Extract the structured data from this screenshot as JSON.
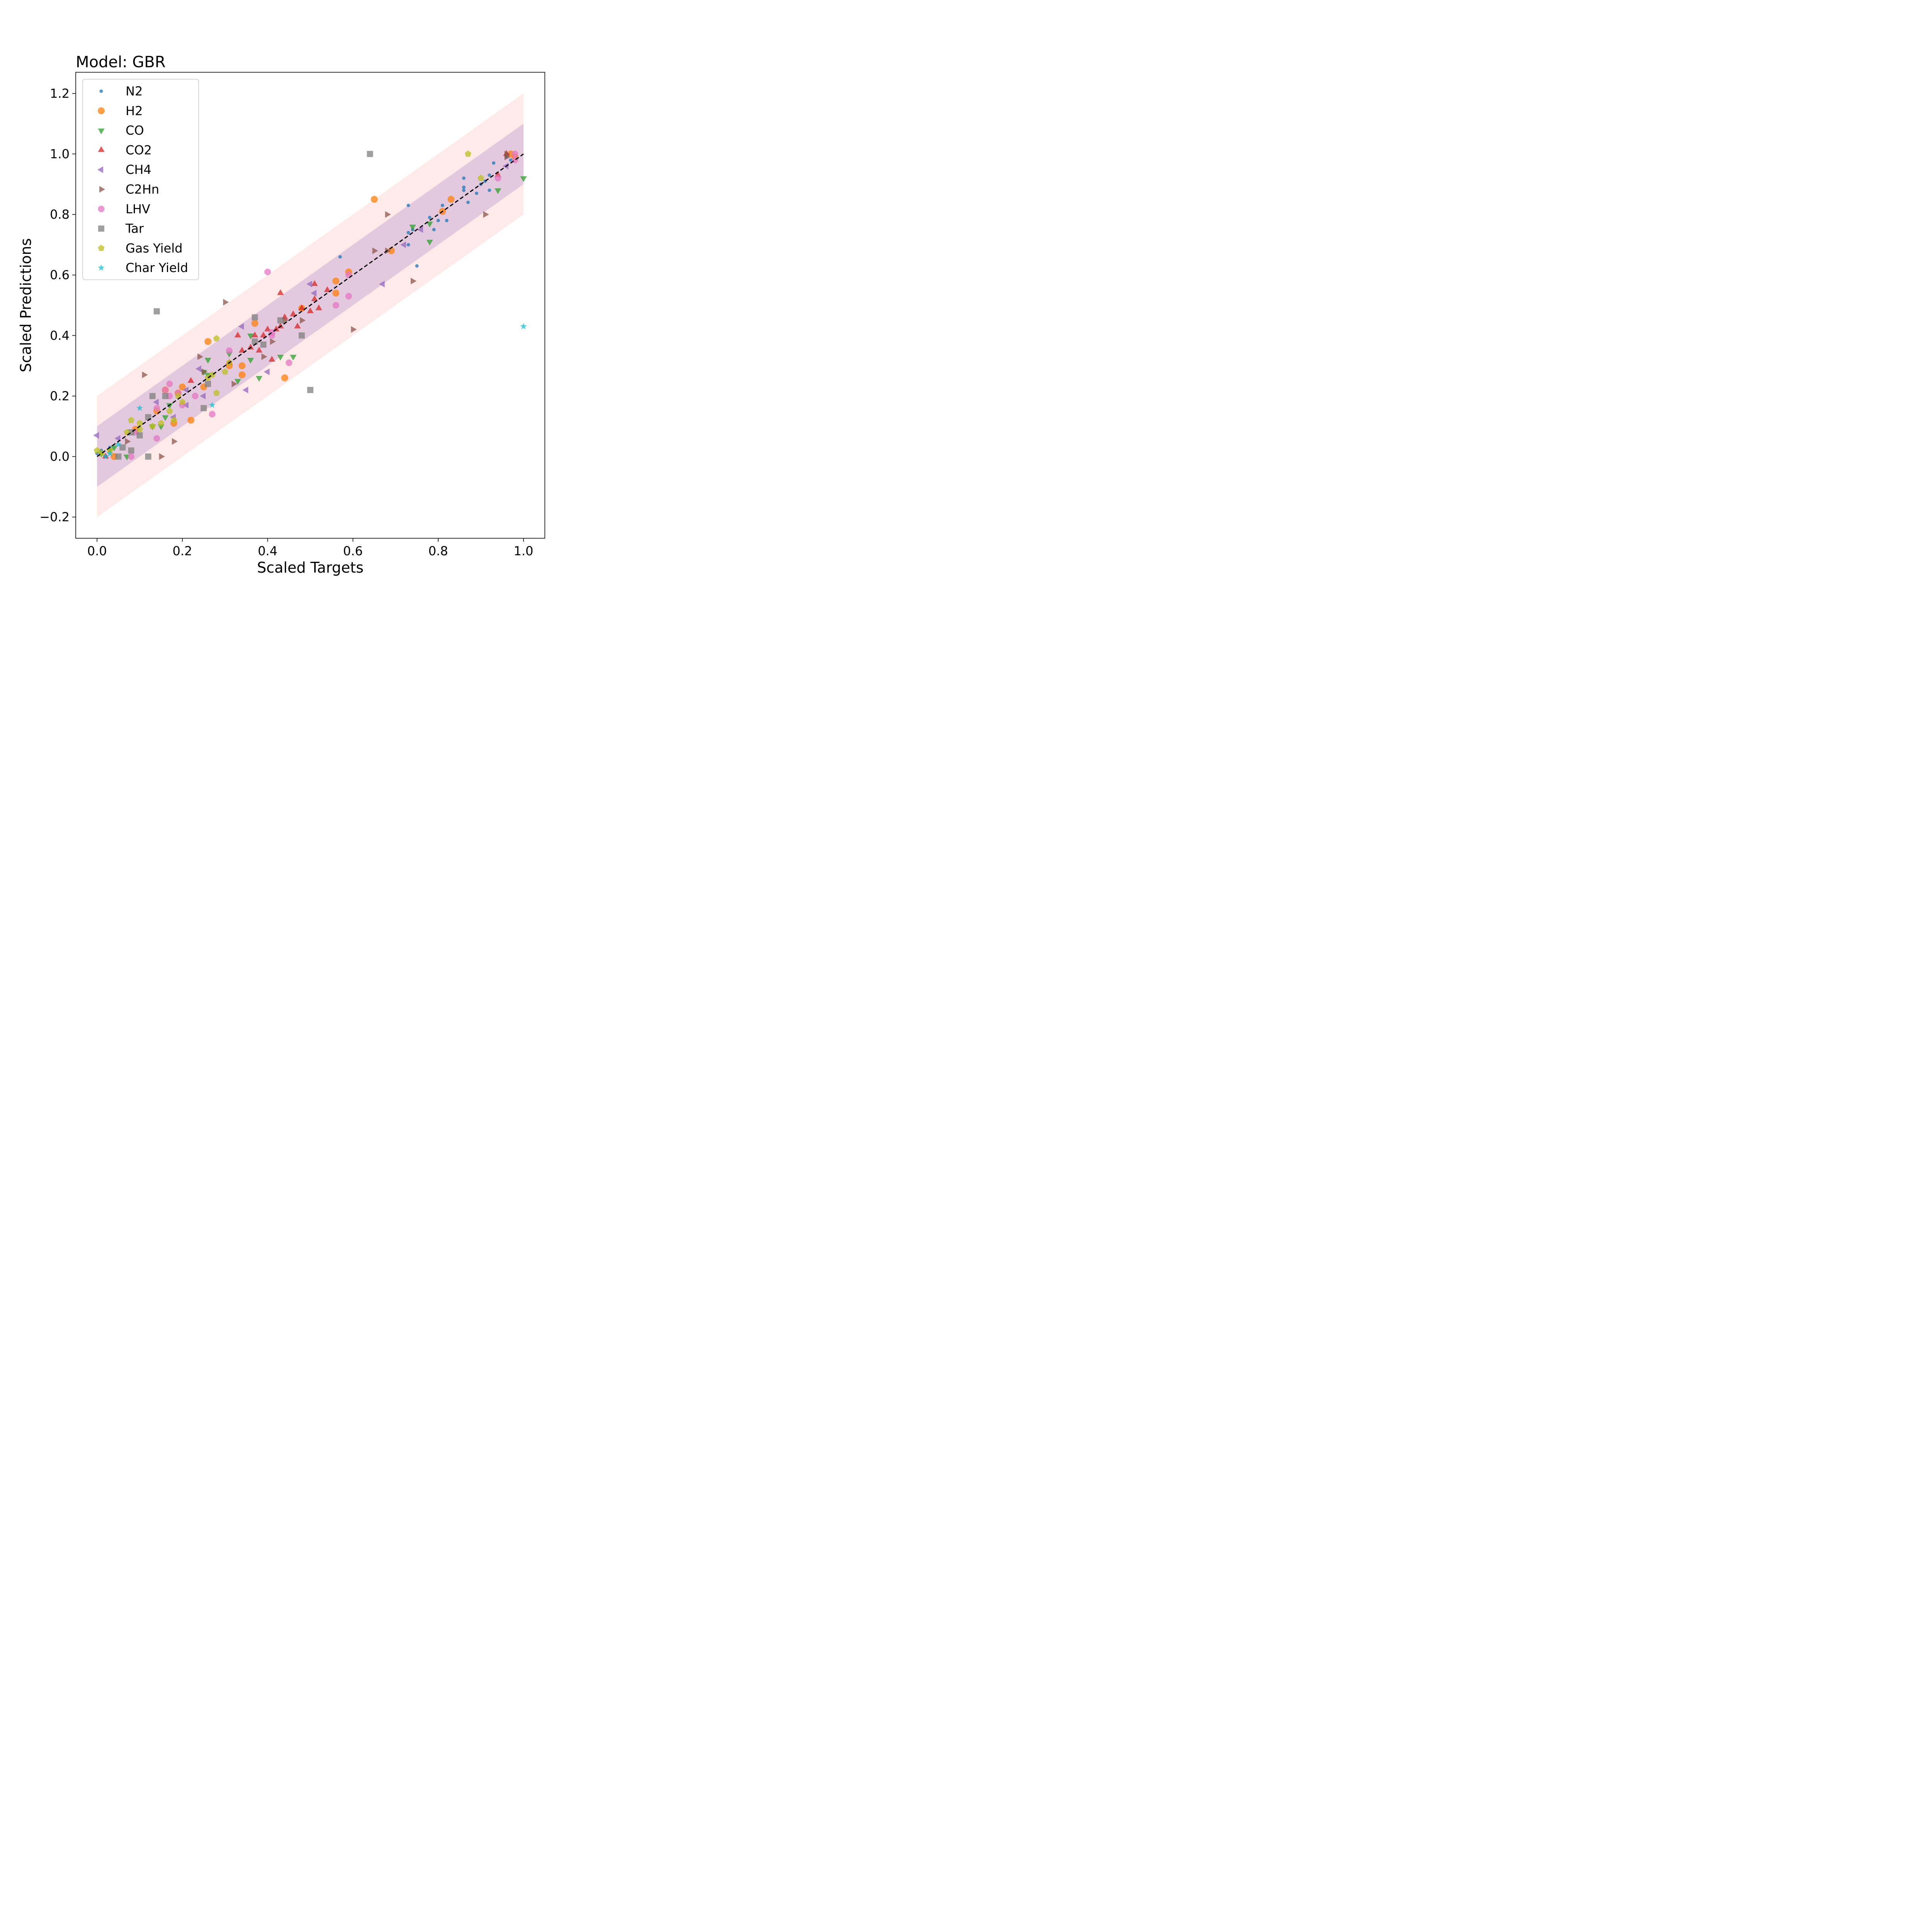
{
  "chart_data": {
    "type": "scatter",
    "title": "Model: GBR",
    "xlabel": "Scaled Targets",
    "ylabel": "Scaled Predictions",
    "xlim": [
      -0.05,
      1.05
    ],
    "ylim": [
      -0.27,
      1.27
    ],
    "xticks": [
      {
        "value": 0.0,
        "label": "0.0"
      },
      {
        "value": 0.2,
        "label": "0.2"
      },
      {
        "value": 0.4,
        "label": "0.4"
      },
      {
        "value": 0.6,
        "label": "0.6"
      },
      {
        "value": 0.8,
        "label": "0.8"
      },
      {
        "value": 1.0,
        "label": "1.0"
      }
    ],
    "yticks": [
      {
        "value": -0.2,
        "label": "−0.2"
      },
      {
        "value": 0.0,
        "label": "0.0"
      },
      {
        "value": 0.2,
        "label": "0.2"
      },
      {
        "value": 0.4,
        "label": "0.4"
      },
      {
        "value": 0.6,
        "label": "0.6"
      },
      {
        "value": 0.8,
        "label": "0.8"
      },
      {
        "value": 1.0,
        "label": "1.0"
      },
      {
        "value": 1.2,
        "label": "1.2"
      }
    ],
    "grid": false,
    "legend_position": "top-left",
    "reference_line": {
      "x": [
        0,
        1
      ],
      "y": [
        0,
        1
      ],
      "color": "#000000",
      "style": "dashed"
    },
    "bands": [
      {
        "half_width": 0.2,
        "color": "#ffb3b3",
        "opacity": 0.28
      },
      {
        "half_width": 0.1,
        "color": "#9467bd",
        "opacity": 0.25
      }
    ],
    "series": [
      {
        "name": "N2",
        "marker": "circle-small",
        "color": "#1f77b4",
        "points": [
          [
            0.0,
            0.01
          ],
          [
            0.01,
            0.02
          ],
          [
            0.02,
            0.0
          ],
          [
            0.03,
            0.03
          ],
          [
            0.57,
            0.66
          ],
          [
            0.73,
            0.83
          ],
          [
            0.73,
            0.74
          ],
          [
            0.73,
            0.7
          ],
          [
            0.74,
            0.75
          ],
          [
            0.75,
            0.63
          ],
          [
            0.78,
            0.79
          ],
          [
            0.79,
            0.75
          ],
          [
            0.8,
            0.78
          ],
          [
            0.81,
            0.83
          ],
          [
            0.82,
            0.78
          ],
          [
            0.86,
            0.88
          ],
          [
            0.86,
            0.89
          ],
          [
            0.86,
            0.92
          ],
          [
            0.87,
            0.84
          ],
          [
            0.89,
            0.87
          ],
          [
            0.9,
            0.9
          ],
          [
            0.91,
            0.91
          ],
          [
            0.92,
            0.93
          ],
          [
            0.92,
            0.88
          ],
          [
            0.93,
            0.97
          ],
          [
            0.96,
            0.99
          ],
          [
            0.97,
            0.98
          ]
        ]
      },
      {
        "name": "H2",
        "marker": "circle",
        "color": "#ff7f0e",
        "points": [
          [
            0.04,
            0.0
          ],
          [
            0.09,
            0.09
          ],
          [
            0.14,
            0.15
          ],
          [
            0.16,
            0.22
          ],
          [
            0.18,
            0.11
          ],
          [
            0.19,
            0.21
          ],
          [
            0.2,
            0.23
          ],
          [
            0.22,
            0.12
          ],
          [
            0.25,
            0.23
          ],
          [
            0.26,
            0.38
          ],
          [
            0.31,
            0.3
          ],
          [
            0.34,
            0.3
          ],
          [
            0.34,
            0.27
          ],
          [
            0.37,
            0.44
          ],
          [
            0.44,
            0.26
          ],
          [
            0.48,
            0.49
          ],
          [
            0.56,
            0.58
          ],
          [
            0.56,
            0.54
          ],
          [
            0.59,
            0.61
          ],
          [
            0.65,
            0.85
          ],
          [
            0.69,
            0.68
          ],
          [
            0.81,
            0.81
          ],
          [
            0.83,
            0.85
          ],
          [
            0.97,
            1.0
          ],
          [
            0.98,
            0.99
          ]
        ]
      },
      {
        "name": "CO",
        "marker": "triangle-down",
        "color": "#2ca02c",
        "points": [
          [
            0.01,
            0.01
          ],
          [
            0.03,
            0.02
          ],
          [
            0.04,
            0.03
          ],
          [
            0.07,
            0.0
          ],
          [
            0.13,
            0.1
          ],
          [
            0.15,
            0.1
          ],
          [
            0.16,
            0.13
          ],
          [
            0.17,
            0.17
          ],
          [
            0.25,
            0.28
          ],
          [
            0.26,
            0.32
          ],
          [
            0.26,
            0.27
          ],
          [
            0.31,
            0.34
          ],
          [
            0.33,
            0.25
          ],
          [
            0.36,
            0.4
          ],
          [
            0.36,
            0.32
          ],
          [
            0.38,
            0.26
          ],
          [
            0.43,
            0.33
          ],
          [
            0.46,
            0.33
          ],
          [
            0.74,
            0.76
          ],
          [
            0.78,
            0.71
          ],
          [
            0.78,
            0.77
          ],
          [
            0.94,
            0.88
          ],
          [
            1.0,
            0.92
          ]
        ]
      },
      {
        "name": "CO2",
        "marker": "triangle-up",
        "color": "#d62728",
        "points": [
          [
            0.02,
            0.0
          ],
          [
            0.22,
            0.25
          ],
          [
            0.31,
            0.31
          ],
          [
            0.33,
            0.4
          ],
          [
            0.34,
            0.35
          ],
          [
            0.36,
            0.36
          ],
          [
            0.37,
            0.4
          ],
          [
            0.38,
            0.35
          ],
          [
            0.39,
            0.4
          ],
          [
            0.4,
            0.42
          ],
          [
            0.41,
            0.32
          ],
          [
            0.42,
            0.42
          ],
          [
            0.43,
            0.54
          ],
          [
            0.43,
            0.43
          ],
          [
            0.44,
            0.46
          ],
          [
            0.46,
            0.47
          ],
          [
            0.47,
            0.43
          ],
          [
            0.48,
            0.49
          ],
          [
            0.5,
            0.48
          ],
          [
            0.51,
            0.52
          ],
          [
            0.51,
            0.57
          ],
          [
            0.52,
            0.49
          ],
          [
            0.54,
            0.55
          ],
          [
            0.94,
            0.93
          ],
          [
            0.96,
            1.0
          ]
        ]
      },
      {
        "name": "CH4",
        "marker": "triangle-left",
        "color": "#9467bd",
        "points": [
          [
            0.0,
            0.07
          ],
          [
            0.05,
            0.06
          ],
          [
            0.14,
            0.18
          ],
          [
            0.18,
            0.13
          ],
          [
            0.21,
            0.17
          ],
          [
            0.21,
            0.22
          ],
          [
            0.24,
            0.29
          ],
          [
            0.25,
            0.2
          ],
          [
            0.34,
            0.43
          ],
          [
            0.35,
            0.22
          ],
          [
            0.4,
            0.28
          ],
          [
            0.5,
            0.57
          ],
          [
            0.51,
            0.54
          ],
          [
            0.67,
            0.57
          ],
          [
            0.72,
            0.7
          ],
          [
            0.76,
            0.75
          ],
          [
            0.96,
            0.96
          ]
        ]
      },
      {
        "name": "C2Hn",
        "marker": "triangle-right",
        "color": "#8c564b",
        "points": [
          [
            0.07,
            0.05
          ],
          [
            0.11,
            0.27
          ],
          [
            0.15,
            0.0
          ],
          [
            0.18,
            0.05
          ],
          [
            0.24,
            0.33
          ],
          [
            0.25,
            0.28
          ],
          [
            0.3,
            0.51
          ],
          [
            0.32,
            0.24
          ],
          [
            0.39,
            0.33
          ],
          [
            0.41,
            0.38
          ],
          [
            0.44,
            0.45
          ],
          [
            0.48,
            0.45
          ],
          [
            0.6,
            0.42
          ],
          [
            0.65,
            0.68
          ],
          [
            0.68,
            0.8
          ],
          [
            0.68,
            0.68
          ],
          [
            0.74,
            0.58
          ],
          [
            0.91,
            0.8
          ],
          [
            0.96,
            0.99
          ],
          [
            0.96,
            1.0
          ]
        ]
      },
      {
        "name": "LHV",
        "marker": "octagon",
        "color": "#e377c2",
        "points": [
          [
            0.08,
            0.0
          ],
          [
            0.09,
            0.08
          ],
          [
            0.14,
            0.06
          ],
          [
            0.14,
            0.16
          ],
          [
            0.16,
            0.22
          ],
          [
            0.17,
            0.2
          ],
          [
            0.17,
            0.24
          ],
          [
            0.19,
            0.21
          ],
          [
            0.2,
            0.17
          ],
          [
            0.23,
            0.2
          ],
          [
            0.27,
            0.14
          ],
          [
            0.31,
            0.35
          ],
          [
            0.4,
            0.61
          ],
          [
            0.41,
            0.41
          ],
          [
            0.41,
            0.4
          ],
          [
            0.45,
            0.31
          ],
          [
            0.56,
            0.5
          ],
          [
            0.59,
            0.53
          ],
          [
            0.59,
            0.6
          ],
          [
            0.94,
            0.92
          ],
          [
            0.98,
            0.98
          ],
          [
            0.98,
            1.0
          ]
        ]
      },
      {
        "name": "Tar",
        "marker": "square",
        "color": "#7f7f7f",
        "points": [
          [
            0.05,
            0.0
          ],
          [
            0.06,
            0.03
          ],
          [
            0.08,
            0.02
          ],
          [
            0.08,
            0.08
          ],
          [
            0.1,
            0.07
          ],
          [
            0.12,
            0.13
          ],
          [
            0.12,
            0.0
          ],
          [
            0.13,
            0.2
          ],
          [
            0.14,
            0.48
          ],
          [
            0.16,
            0.2
          ],
          [
            0.25,
            0.16
          ],
          [
            0.26,
            0.24
          ],
          [
            0.37,
            0.46
          ],
          [
            0.37,
            0.38
          ],
          [
            0.39,
            0.37
          ],
          [
            0.43,
            0.45
          ],
          [
            0.48,
            0.4
          ],
          [
            0.5,
            0.22
          ],
          [
            0.64,
            1.0
          ]
        ]
      },
      {
        "name": "Gas Yield",
        "marker": "pentagon",
        "color": "#bcbd22",
        "points": [
          [
            0.0,
            0.02
          ],
          [
            0.01,
            0.01
          ],
          [
            0.03,
            0.02
          ],
          [
            0.07,
            0.08
          ],
          [
            0.08,
            0.12
          ],
          [
            0.1,
            0.11
          ],
          [
            0.1,
            0.09
          ],
          [
            0.13,
            0.1
          ],
          [
            0.15,
            0.11
          ],
          [
            0.17,
            0.15
          ],
          [
            0.18,
            0.12
          ],
          [
            0.19,
            0.2
          ],
          [
            0.2,
            0.18
          ],
          [
            0.26,
            0.26
          ],
          [
            0.27,
            0.27
          ],
          [
            0.28,
            0.21
          ],
          [
            0.28,
            0.39
          ],
          [
            0.3,
            0.28
          ],
          [
            0.31,
            0.31
          ],
          [
            0.87,
            1.0
          ],
          [
            0.9,
            0.92
          ]
        ]
      },
      {
        "name": "Char Yield",
        "marker": "star",
        "color": "#17becf",
        "points": [
          [
            0.02,
            0.0
          ],
          [
            0.03,
            0.01
          ],
          [
            0.05,
            0.04
          ],
          [
            0.1,
            0.16
          ],
          [
            0.27,
            0.17
          ],
          [
            1.0,
            0.43
          ]
        ]
      }
    ]
  }
}
